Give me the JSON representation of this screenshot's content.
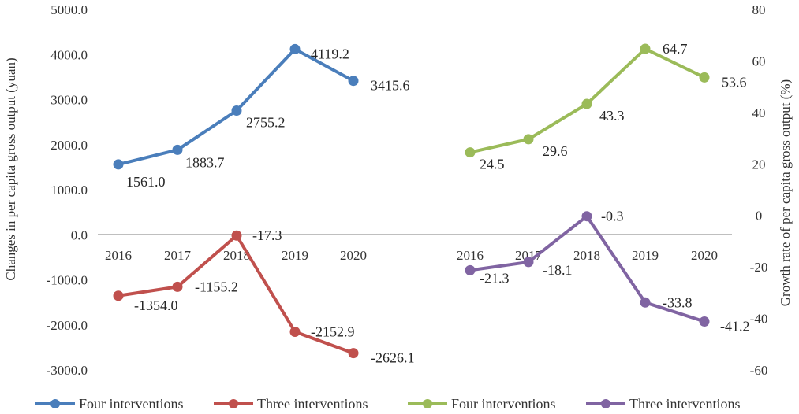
{
  "chart_data": {
    "type": "line",
    "x_categories": [
      "2016",
      "2017",
      "2018",
      "2019",
      "2020"
    ],
    "left_axis": {
      "label": "Changes in per capita gross output (yuan)",
      "ylim": [
        -3000,
        5000
      ],
      "ticks": [
        "5000.0",
        "4000.0",
        "3000.0",
        "2000.0",
        "1000.0",
        "0.0",
        "-1000.0",
        "-2000.0",
        "-3000.0"
      ]
    },
    "right_axis": {
      "label": "Growth rate of per capita gross output (%)",
      "ylim": [
        -60,
        80
      ],
      "ticks": [
        "80",
        "60",
        "40",
        "20",
        "0",
        "-20",
        "-40",
        "-60"
      ]
    },
    "series": [
      {
        "name": "Four interventions",
        "axis": "left",
        "group": "left",
        "color": "#4a7ebb",
        "values": [
          1561.0,
          1883.7,
          2755.2,
          4119.2,
          3415.6
        ],
        "labels": [
          "1561.0",
          "1883.7",
          "2755.2",
          "4119.2",
          "3415.6"
        ]
      },
      {
        "name": "Three interventions",
        "axis": "left",
        "group": "left",
        "color": "#c0504d",
        "values": [
          -1354.0,
          -1155.2,
          -17.3,
          -2152.9,
          -2626.1
        ],
        "labels": [
          "-1354.0",
          "-1155.2",
          "-17.3",
          "-2152.9",
          "-2626.1"
        ]
      },
      {
        "name": "Four interventions",
        "axis": "right",
        "group": "right",
        "color": "#9bbb59",
        "values": [
          24.5,
          29.6,
          43.3,
          64.7,
          53.6
        ],
        "labels": [
          "24.5",
          "29.6",
          "43.3",
          "64.7",
          "53.6"
        ]
      },
      {
        "name": "Three interventions",
        "axis": "right",
        "group": "right",
        "color": "#8064a2",
        "values": [
          -21.3,
          -18.1,
          -0.3,
          -33.8,
          -41.2
        ],
        "labels": [
          "-21.3",
          "-18.1",
          "-0.3",
          "-33.8",
          "-41.2"
        ]
      }
    ],
    "grid": false,
    "zero_line": true,
    "legend_position": "bottom"
  }
}
